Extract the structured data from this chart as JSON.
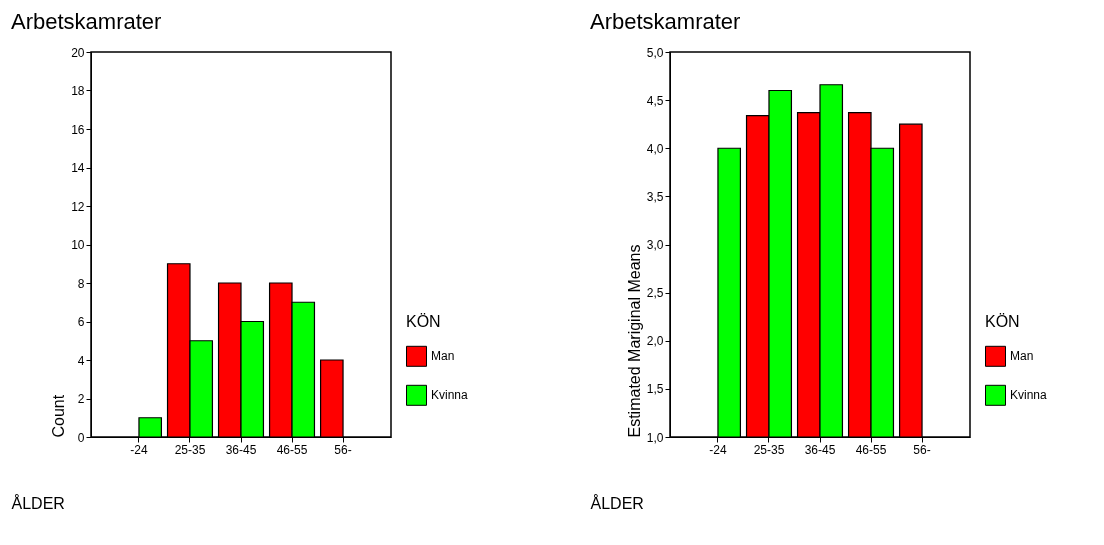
{
  "chart_data": [
    {
      "type": "bar",
      "title": "Arbetskamrater",
      "xlabel": "ÅLDER",
      "ylabel": "Count",
      "legend_title": "KÖN",
      "legend": "right",
      "grid": false,
      "categories": [
        "-24",
        "25-35",
        "36-45",
        "46-55",
        "56-"
      ],
      "series": [
        {
          "name": "Man",
          "color": "#ff0000",
          "values": [
            null,
            9,
            8,
            8,
            4
          ]
        },
        {
          "name": "Kvinna",
          "color": "#00ff00",
          "values": [
            1,
            5,
            6,
            7,
            null
          ]
        }
      ],
      "ylim": [
        0,
        20
      ],
      "yticks": [
        0,
        2,
        4,
        6,
        8,
        10,
        12,
        14,
        16,
        18,
        20
      ]
    },
    {
      "type": "bar",
      "title": "Arbetskamrater",
      "xlabel": "ÅLDER",
      "ylabel": "Estimated Mariginal Means",
      "legend_title": "KÖN",
      "legend": "right",
      "grid": false,
      "categories": [
        "-24",
        "25-35",
        "36-45",
        "46-55",
        "56-"
      ],
      "series": [
        {
          "name": "Man",
          "color": "#ff0000",
          "values": [
            null,
            4.34,
            4.37,
            4.37,
            4.25
          ]
        },
        {
          "name": "Kvinna",
          "color": "#00ff00",
          "values": [
            4.0,
            4.6,
            4.66,
            4.0,
            null
          ]
        }
      ],
      "ylim": [
        1.0,
        5.0
      ],
      "yticks": [
        {
          "value": 1.0,
          "label": "1,0"
        },
        {
          "value": 1.5,
          "label": "1,5"
        },
        {
          "value": 2.0,
          "label": "2,0"
        },
        {
          "value": 2.5,
          "label": "2,5"
        },
        {
          "value": 3.0,
          "label": "3,0"
        },
        {
          "value": 3.5,
          "label": "3,5"
        },
        {
          "value": 4.0,
          "label": "4,0"
        },
        {
          "value": 4.5,
          "label": "4,5"
        },
        {
          "value": 5.0,
          "label": "5,0"
        }
      ]
    }
  ]
}
